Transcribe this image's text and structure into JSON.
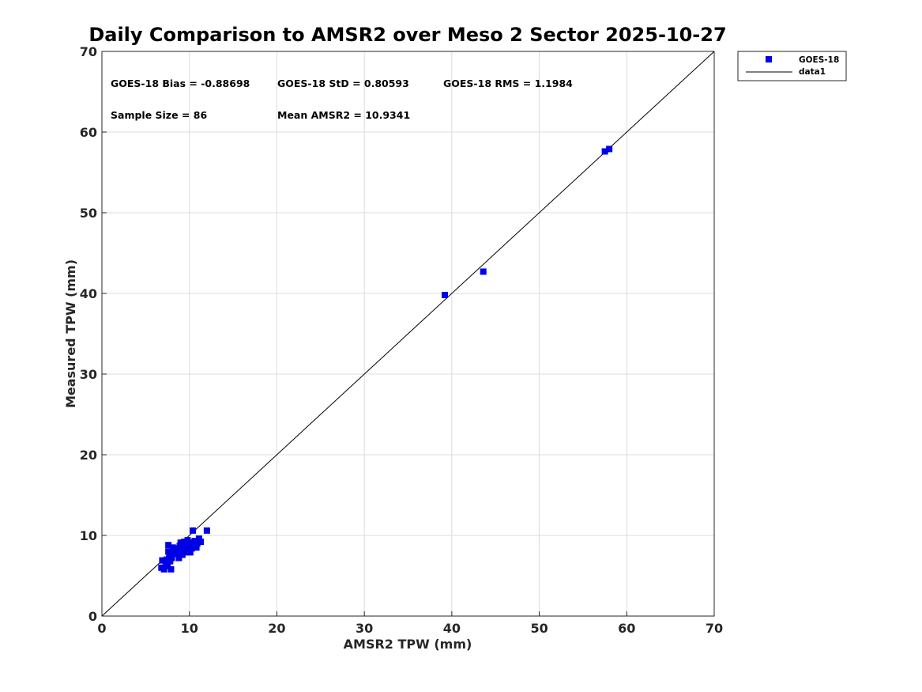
{
  "chart_data": {
    "type": "scatter",
    "title": "Daily Comparison to AMSR2 over Meso 2 Sector 2025-10-27",
    "xlabel": "AMSR2 TPW (mm)",
    "ylabel": "Measured TPW (mm)",
    "xlim": [
      0,
      70
    ],
    "ylim": [
      0,
      70
    ],
    "xticks": [
      0,
      10,
      20,
      30,
      40,
      50,
      60,
      70
    ],
    "yticks": [
      0,
      10,
      20,
      30,
      40,
      50,
      60,
      70
    ],
    "grid": true,
    "legend_position": "outside-top-right",
    "colors": {
      "series": "#0000e6",
      "reference_line": "#000000",
      "grid": "#dcdcdc"
    },
    "stats": {
      "bias": "GOES-18 Bias = -0.88698",
      "std": "GOES-18 StD = 0.80593",
      "rms": "GOES-18 RMS = 1.1984",
      "sample_size": "Sample Size = 86",
      "mean": "Mean AMSR2 = 10.9341"
    },
    "series": [
      {
        "name": "GOES-18",
        "marker": "square",
        "points": [
          [
            6.8,
            6.0
          ],
          [
            6.9,
            6.9
          ],
          [
            7.1,
            5.8
          ],
          [
            7.3,
            6.2
          ],
          [
            7.4,
            7.0
          ],
          [
            7.5,
            6.4
          ],
          [
            7.6,
            8.0
          ],
          [
            7.6,
            8.8
          ],
          [
            7.7,
            7.6
          ],
          [
            7.8,
            6.8
          ],
          [
            7.9,
            5.8
          ],
          [
            8.0,
            7.2
          ],
          [
            8.1,
            8.5
          ],
          [
            8.2,
            7.9
          ],
          [
            8.3,
            8.1
          ],
          [
            8.5,
            7.7
          ],
          [
            8.6,
            8.4
          ],
          [
            8.7,
            8.0
          ],
          [
            8.8,
            7.2
          ],
          [
            8.9,
            8.7
          ],
          [
            9.0,
            9.1
          ],
          [
            9.1,
            8.0
          ],
          [
            9.2,
            7.6
          ],
          [
            9.3,
            8.3
          ],
          [
            9.4,
            9.2
          ],
          [
            9.5,
            8.6
          ],
          [
            9.6,
            7.9
          ],
          [
            9.7,
            8.8
          ],
          [
            9.8,
            9.4
          ],
          [
            9.9,
            8.2
          ],
          [
            10.0,
            8.9
          ],
          [
            10.1,
            7.9
          ],
          [
            10.2,
            9.1
          ],
          [
            10.3,
            8.4
          ],
          [
            10.4,
            10.6
          ],
          [
            10.5,
            8.7
          ],
          [
            10.6,
            9.3
          ],
          [
            10.8,
            8.5
          ],
          [
            10.9,
            9.0
          ],
          [
            11.1,
            9.6
          ],
          [
            11.3,
            9.2
          ],
          [
            12.0,
            10.6
          ],
          [
            39.2,
            39.8
          ],
          [
            43.6,
            42.7
          ],
          [
            57.5,
            57.6
          ],
          [
            58.0,
            57.9
          ]
        ]
      },
      {
        "name": "data1",
        "type": "line",
        "x": [
          0,
          70
        ],
        "y": [
          0,
          70
        ]
      }
    ]
  }
}
